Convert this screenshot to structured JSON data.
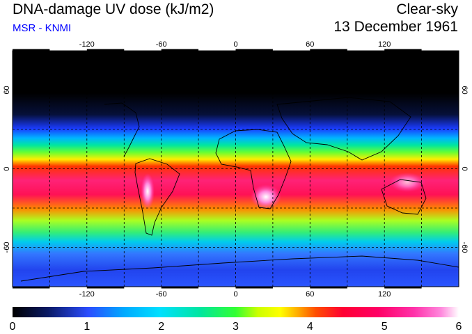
{
  "header": {
    "title": "DNA-damage UV dose (kJ/m2)",
    "subtitle": "MSR - KNMI",
    "condition": "Clear-sky",
    "date": "13 December 1961"
  },
  "colors": {
    "subtitle": "#0000ff",
    "colorbar": [
      "#000000",
      "#0a1a66",
      "#2b4dff",
      "#00aaff",
      "#00e0ff",
      "#00e6a0",
      "#33ff33",
      "#ccff00",
      "#ffff00",
      "#ffaa00",
      "#ff4d00",
      "#ff0033",
      "#ff0066",
      "#ff33aa",
      "#ff88dd",
      "#ffffff"
    ]
  },
  "map": {
    "lon_ticks": [
      "-120",
      "-60",
      "0",
      "60",
      "120"
    ],
    "lat_ticks": [
      "60",
      "0",
      "-60"
    ],
    "gridlines": true,
    "lon_range": [
      -180,
      180
    ],
    "lat_range": [
      -90,
      90
    ]
  },
  "colorbar": {
    "labels": [
      "0",
      "1",
      "2",
      "3",
      "4",
      "5",
      "6"
    ],
    "range": [
      0,
      6
    ]
  }
}
